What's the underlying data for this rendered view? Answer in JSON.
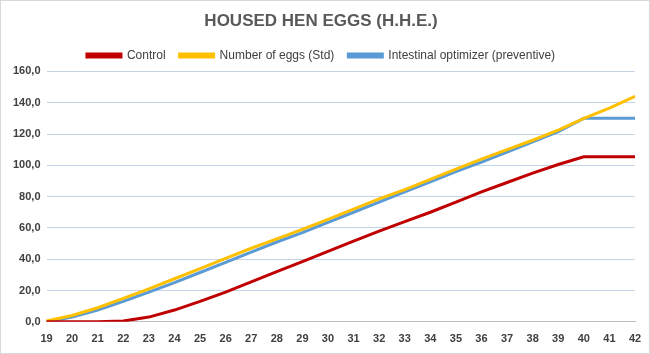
{
  "chart_data": {
    "type": "line",
    "title": "HOUSED HEN EGGS (H.H.E.)",
    "categories": [
      "19",
      "20",
      "21",
      "22",
      "23",
      "24",
      "25",
      "26",
      "27",
      "28",
      "29",
      "30",
      "31",
      "32",
      "33",
      "34",
      "35",
      "36",
      "37",
      "38",
      "39",
      "40",
      "41",
      "42"
    ],
    "series": [
      {
        "name": "Control",
        "color": "#c00000",
        "values": [
          0,
          0,
          0,
          0.5,
          3,
          7.5,
          13,
          19,
          25.5,
          32,
          38.5,
          45,
          51.5,
          58,
          64,
          70,
          76.5,
          83,
          89,
          95,
          100.5,
          105.5,
          105.5,
          105.5
        ]
      },
      {
        "name": "Number of eggs (Std)",
        "color": "#ffc000",
        "values": [
          0.5,
          4,
          9,
          15,
          21,
          27.5,
          34,
          40.5,
          47,
          53,
          59,
          65.5,
          72,
          78.5,
          84.5,
          91,
          97.5,
          104,
          110,
          116,
          122.5,
          130,
          136.5,
          144
        ]
      },
      {
        "name": "Intestinal optimizer (preventive)",
        "color": "#5b9bd5",
        "values": [
          0,
          3,
          7.5,
          13,
          19,
          25,
          31.5,
          38,
          44.5,
          51,
          57,
          63.5,
          70,
          76.5,
          83,
          89.5,
          96,
          102,
          108.5,
          115,
          121.5,
          130,
          130,
          130
        ]
      }
    ],
    "ylim": [
      0,
      160
    ],
    "yticks": [
      {
        "value": 0,
        "label": "0,0"
      },
      {
        "value": 20,
        "label": "20,0"
      },
      {
        "value": 40,
        "label": "40,0"
      },
      {
        "value": 60,
        "label": "60,0"
      },
      {
        "value": 80,
        "label": "80,0"
      },
      {
        "value": 100,
        "label": "100,0"
      },
      {
        "value": 120,
        "label": "120,0"
      },
      {
        "value": 140,
        "label": "140,0"
      },
      {
        "value": 160,
        "label": "160,0"
      }
    ],
    "grid": true,
    "legend": "top"
  }
}
